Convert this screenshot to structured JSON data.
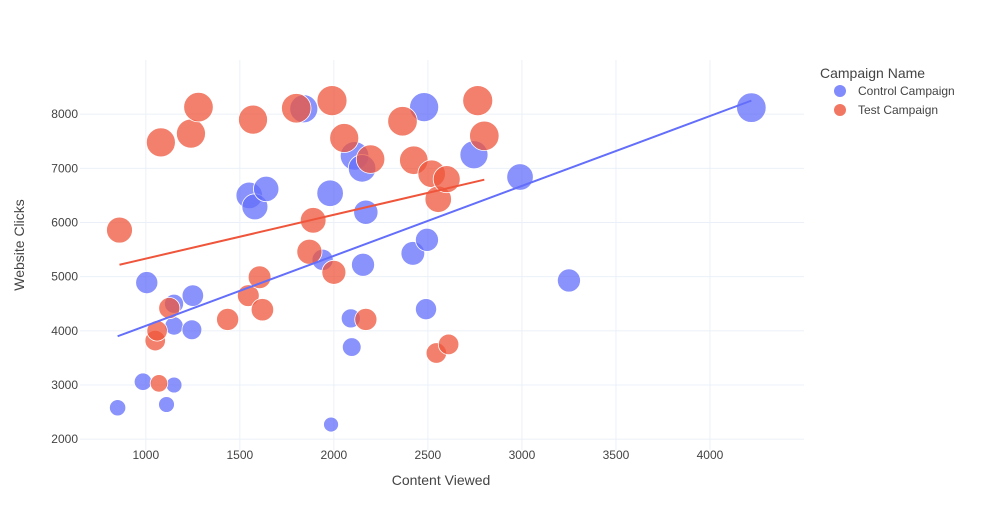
{
  "chart_data": {
    "type": "scatter",
    "xlabel": "Content Viewed",
    "ylabel": "Website Clicks",
    "xlim": [
      650,
      4500
    ],
    "ylim": [
      1800,
      9000
    ],
    "x_ticks": [
      1000,
      1500,
      2000,
      2500,
      3000,
      3500,
      4000
    ],
    "y_ticks": [
      2000,
      3000,
      4000,
      5000,
      6000,
      7000,
      8000
    ],
    "grid": true,
    "legend": {
      "title": "Campaign Name",
      "placement": "right"
    },
    "series": [
      {
        "name": "Control Campaign",
        "color": "#636efa",
        "trendline": [
          [
            850,
            3900
          ],
          [
            4220,
            8250
          ]
        ],
        "points": [
          {
            "x": 850,
            "y": 2580,
            "size": 95
          },
          {
            "x": 985,
            "y": 3060,
            "size": 110
          },
          {
            "x": 1005,
            "y": 4890,
            "size": 175
          },
          {
            "x": 1110,
            "y": 2640,
            "size": 90
          },
          {
            "x": 1150,
            "y": 3000,
            "size": 90
          },
          {
            "x": 1150,
            "y": 4090,
            "size": 120
          },
          {
            "x": 1150,
            "y": 4500,
            "size": 130
          },
          {
            "x": 1245,
            "y": 4020,
            "size": 140
          },
          {
            "x": 1250,
            "y": 4650,
            "size": 165
          },
          {
            "x": 1550,
            "y": 6500,
            "size": 250
          },
          {
            "x": 1580,
            "y": 6290,
            "size": 240
          },
          {
            "x": 1640,
            "y": 6620,
            "size": 230
          },
          {
            "x": 1840,
            "y": 8100,
            "size": 280
          },
          {
            "x": 1940,
            "y": 5310,
            "size": 160
          },
          {
            "x": 1980,
            "y": 6540,
            "size": 250
          },
          {
            "x": 1985,
            "y": 2270,
            "size": 80
          },
          {
            "x": 2090,
            "y": 4230,
            "size": 130
          },
          {
            "x": 2095,
            "y": 3700,
            "size": 125
          },
          {
            "x": 2110,
            "y": 7230,
            "size": 290
          },
          {
            "x": 2150,
            "y": 7000,
            "size": 270
          },
          {
            "x": 2155,
            "y": 5220,
            "size": 190
          },
          {
            "x": 2170,
            "y": 6190,
            "size": 210
          },
          {
            "x": 2420,
            "y": 5430,
            "size": 200
          },
          {
            "x": 2480,
            "y": 8130,
            "size": 300
          },
          {
            "x": 2490,
            "y": 4400,
            "size": 160
          },
          {
            "x": 2495,
            "y": 5680,
            "size": 190
          },
          {
            "x": 2745,
            "y": 7250,
            "size": 280
          },
          {
            "x": 2990,
            "y": 6840,
            "size": 250
          },
          {
            "x": 3250,
            "y": 4930,
            "size": 190
          },
          {
            "x": 4220,
            "y": 8120,
            "size": 310
          }
        ]
      },
      {
        "name": "Test Campaign",
        "color": "#ef553b",
        "trendline": [
          [
            860,
            5220
          ],
          [
            2800,
            6790
          ]
        ],
        "points": [
          {
            "x": 860,
            "y": 5860,
            "size": 240
          },
          {
            "x": 1050,
            "y": 3820,
            "size": 150
          },
          {
            "x": 1060,
            "y": 4000,
            "size": 150
          },
          {
            "x": 1070,
            "y": 3030,
            "size": 110
          },
          {
            "x": 1080,
            "y": 7480,
            "size": 300
          },
          {
            "x": 1125,
            "y": 4420,
            "size": 160
          },
          {
            "x": 1240,
            "y": 7640,
            "size": 300
          },
          {
            "x": 1280,
            "y": 8130,
            "size": 310
          },
          {
            "x": 1435,
            "y": 4210,
            "size": 175
          },
          {
            "x": 1545,
            "y": 4650,
            "size": 170
          },
          {
            "x": 1570,
            "y": 7900,
            "size": 300
          },
          {
            "x": 1605,
            "y": 4990,
            "size": 185
          },
          {
            "x": 1620,
            "y": 4390,
            "size": 180
          },
          {
            "x": 1800,
            "y": 8110,
            "size": 310
          },
          {
            "x": 1870,
            "y": 5460,
            "size": 225
          },
          {
            "x": 1890,
            "y": 6040,
            "size": 235
          },
          {
            "x": 1990,
            "y": 8250,
            "size": 320
          },
          {
            "x": 2000,
            "y": 5080,
            "size": 205
          },
          {
            "x": 2055,
            "y": 7560,
            "size": 300
          },
          {
            "x": 2170,
            "y": 4210,
            "size": 175
          },
          {
            "x": 2195,
            "y": 7170,
            "size": 290
          },
          {
            "x": 2365,
            "y": 7870,
            "size": 310
          },
          {
            "x": 2425,
            "y": 7150,
            "size": 290
          },
          {
            "x": 2520,
            "y": 6900,
            "size": 270
          },
          {
            "x": 2545,
            "y": 3590,
            "size": 150
          },
          {
            "x": 2555,
            "y": 6430,
            "size": 250
          },
          {
            "x": 2600,
            "y": 6800,
            "size": 260
          },
          {
            "x": 2610,
            "y": 3750,
            "size": 150
          },
          {
            "x": 2765,
            "y": 8250,
            "size": 320
          },
          {
            "x": 2800,
            "y": 7600,
            "size": 310
          }
        ]
      }
    ]
  }
}
